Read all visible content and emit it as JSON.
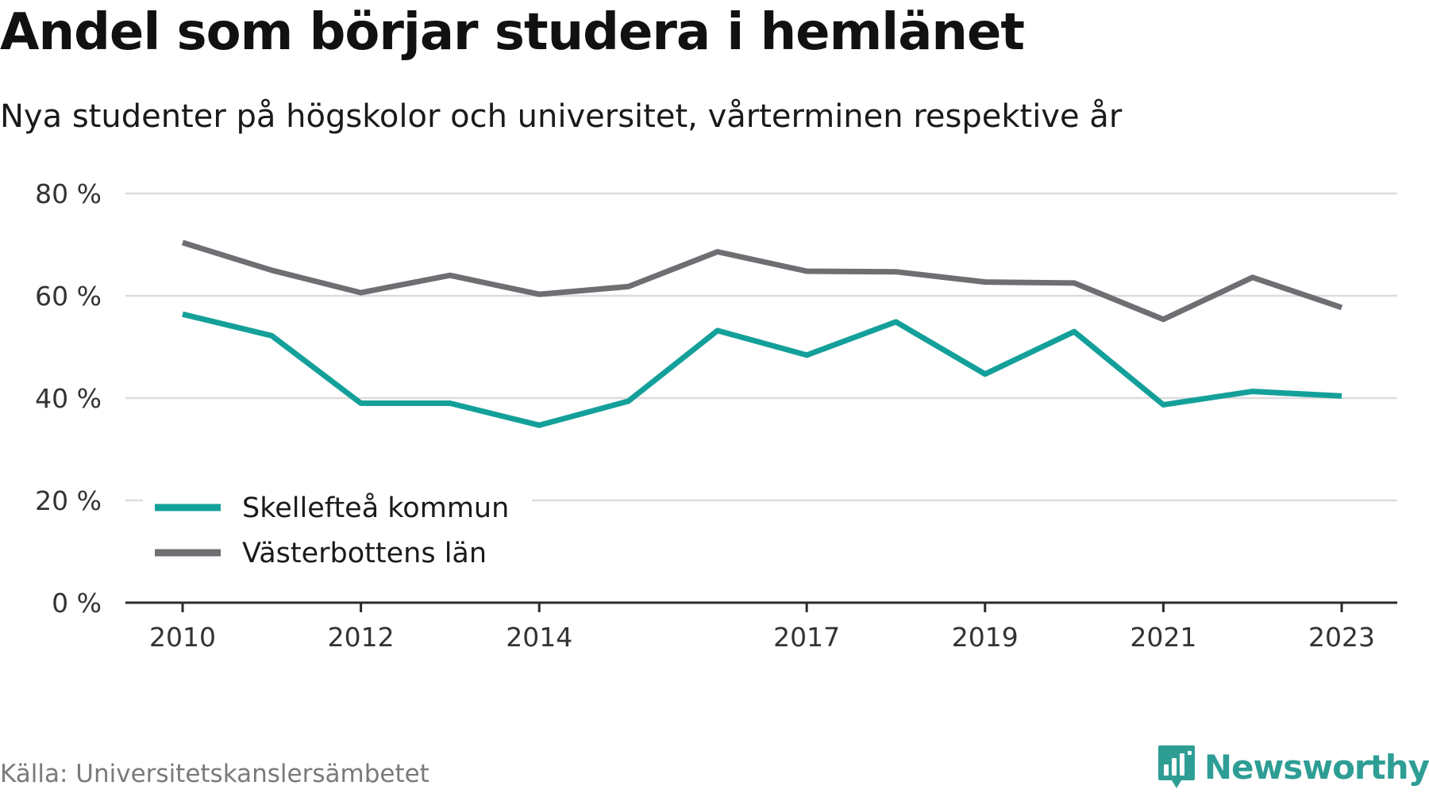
{
  "header": {
    "title": "Andel som börjar studera i hemlänet",
    "subtitle": "Nya studenter på högskolor och universitet, vårterminen respektive år"
  },
  "footer": {
    "source": "Källa: Universitetskanslersämbetet",
    "brand": "Newsworthy",
    "brand_icon": "newsworthy-logo-icon",
    "brand_color": "#2e9e95"
  },
  "chart_data": {
    "type": "line",
    "title": "Andel som börjar studera i hemlänet",
    "subtitle": "Nya studenter på högskolor och universitet, vårterminen respektive år",
    "xlabel": "",
    "ylabel": "",
    "x": [
      2010,
      2011,
      2012,
      2013,
      2014,
      2015,
      2016,
      2017,
      2018,
      2019,
      2020,
      2021,
      2022,
      2023
    ],
    "x_ticks": [
      "2010",
      "2012",
      "2014",
      "2017",
      "2019",
      "2021",
      "2023"
    ],
    "ylim": [
      0,
      80
    ],
    "y_ticks": [
      0,
      20,
      40,
      60,
      80
    ],
    "y_tick_labels": [
      "0 %",
      "20 %",
      "40 %",
      "60 %",
      "80 %"
    ],
    "grid": true,
    "legend_position": "bottom-left",
    "series": [
      {
        "name": "Skellefteå kommun",
        "color": "#14a09a",
        "values": [
          56.4,
          52.2,
          39.0,
          39.0,
          34.7,
          39.4,
          53.2,
          48.4,
          54.9,
          44.7,
          53.0,
          38.7,
          41.3,
          40.4
        ]
      },
      {
        "name": "Västerbottens län",
        "color": "#6e6e73",
        "values": [
          70.4,
          65.0,
          60.6,
          64.0,
          60.3,
          61.8,
          68.6,
          64.8,
          64.7,
          62.7,
          62.5,
          55.4,
          63.6,
          57.7
        ]
      }
    ]
  }
}
